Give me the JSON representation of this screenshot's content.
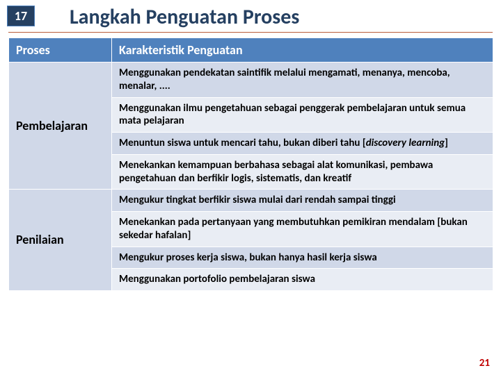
{
  "slide_number_box": "17",
  "title": "Langkah Penguatan Proses",
  "title_color": "#254061",
  "header": {
    "col1": "Proses",
    "col2": "Karakteristik Penguatan"
  },
  "groups": [
    {
      "label": "Pembelajaran",
      "label_band": "a"
    },
    {
      "label": "Penilaian",
      "label_band": "a"
    }
  ],
  "rows": [
    {
      "band": "a",
      "text": "Menggunakan pendekatan saintifik melalui mengamati, menanya, mencoba, menalar, ...."
    },
    {
      "band": "b",
      "text": "Menggunakan ilmu pengetahuan sebagai penggerak pembelajaran untuk semua mata pelajaran"
    },
    {
      "band": "a",
      "html": "Menuntun siswa untuk mencari tahu, bukan diberi tahu [<span class=\"italic\">discovery learning</span>]"
    },
    {
      "band": "b",
      "text": "Menekankan kemampuan berbahasa sebagai alat komunikasi, pembawa pengetahuan dan berfikir logis, sistematis, dan kreatif"
    },
    {
      "band": "a",
      "text": "Mengukur tingkat berfikir siswa mulai dari rendah sampai tinggi"
    },
    {
      "band": "b",
      "text": "Menekankan pada pertanyaan yang membutuhkan pemikiran mendalam [bukan sekedar hafalan]"
    },
    {
      "band": "a",
      "text": "Mengukur proses kerja siswa, bukan hanya hasil kerja siswa"
    },
    {
      "band": "b",
      "text": "Menggunakan portofolio pembelajaran siswa"
    }
  ],
  "footer_number": "21",
  "colors": {
    "header_bg": "#4f81bd",
    "band_a": "#d0d8e8",
    "band_b": "#e9edf4",
    "box_bg": "#254061",
    "footer": "#c00000"
  }
}
